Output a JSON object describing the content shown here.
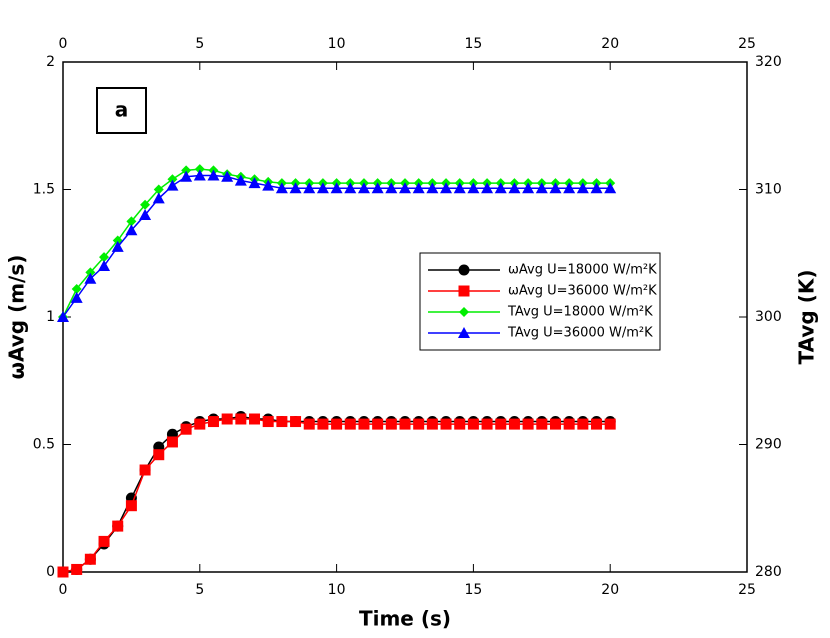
{
  "chart_data": {
    "type": "line",
    "annotation": "a",
    "x_label": "Time (s)",
    "y_label": "ωAvg (m/s)",
    "y2_label": "TAvg (K)",
    "x": [
      0,
      0.5,
      1,
      1.5,
      2,
      2.5,
      3,
      3.5,
      4,
      4.5,
      5,
      5.5,
      6,
      6.5,
      7,
      7.5,
      8,
      8.5,
      9,
      9.5,
      10,
      10.5,
      11,
      11.5,
      12,
      12.5,
      13,
      13.5,
      14,
      14.5,
      15,
      15.5,
      16,
      16.5,
      17,
      17.5,
      18,
      18.5,
      19,
      19.5,
      20
    ],
    "xlim": [
      0,
      25
    ],
    "xticks": [
      0,
      5,
      10,
      15,
      20,
      25
    ],
    "ylim": [
      0,
      2
    ],
    "yticks": [
      0,
      0.5,
      1,
      1.5,
      2
    ],
    "y2lim": [
      280,
      320
    ],
    "y2ticks": [
      280,
      290,
      300,
      310,
      320
    ],
    "series": [
      {
        "name": "ωAvg U=18000 W/m²K",
        "color": "#000000",
        "marker": "circle",
        "values": [
          0,
          0.01,
          0.05,
          0.11,
          0.18,
          0.29,
          0.4,
          0.49,
          0.54,
          0.57,
          0.59,
          0.6,
          0.6,
          0.61,
          0.6,
          0.6,
          0.59,
          0.59,
          0.59,
          0.59,
          0.59,
          0.59,
          0.59,
          0.59,
          0.59,
          0.59,
          0.59,
          0.59,
          0.59,
          0.59,
          0.59,
          0.59,
          0.59,
          0.59,
          0.59,
          0.59,
          0.59,
          0.59,
          0.59,
          0.59,
          0.59
        ]
      },
      {
        "name": "ωAvg U=36000 W/m²K",
        "color": "#ff0000",
        "marker": "square",
        "values": [
          0,
          0.01,
          0.05,
          0.12,
          0.18,
          0.26,
          0.4,
          0.46,
          0.51,
          0.56,
          0.58,
          0.59,
          0.6,
          0.6,
          0.6,
          0.59,
          0.59,
          0.59,
          0.58,
          0.58,
          0.58,
          0.58,
          0.58,
          0.58,
          0.58,
          0.58,
          0.58,
          0.58,
          0.58,
          0.58,
          0.58,
          0.58,
          0.58,
          0.58,
          0.58,
          0.58,
          0.58,
          0.58,
          0.58,
          0.58,
          0.58
        ]
      },
      {
        "name": "TAvg U=18000 W/m²K",
        "color": "#00ee00",
        "marker": "diamond",
        "axis": "y2",
        "values": [
          300,
          302.2,
          303.5,
          304.7,
          306,
          307.5,
          308.8,
          310,
          310.8,
          311.5,
          311.6,
          311.5,
          311.2,
          311,
          310.8,
          310.6,
          310.5,
          310.5,
          310.5,
          310.5,
          310.5,
          310.5,
          310.5,
          310.5,
          310.5,
          310.5,
          310.5,
          310.5,
          310.5,
          310.5,
          310.5,
          310.5,
          310.5,
          310.5,
          310.5,
          310.5,
          310.5,
          310.5,
          310.5,
          310.5,
          310.5
        ]
      },
      {
        "name": "TAvg U=36000 W/m²K",
        "color": "#0000ff",
        "marker": "triangle",
        "axis": "y2",
        "values": [
          300,
          301.5,
          303,
          304,
          305.5,
          306.8,
          308,
          309.3,
          310.3,
          311,
          311.1,
          311.1,
          311,
          310.7,
          310.5,
          310.3,
          310.1,
          310.1,
          310.1,
          310.1,
          310.1,
          310.1,
          310.1,
          310.1,
          310.1,
          310.1,
          310.1,
          310.1,
          310.1,
          310.1,
          310.1,
          310.1,
          310.1,
          310.1,
          310.1,
          310.1,
          310.1,
          310.1,
          310.1,
          310.1,
          310.1
        ]
      }
    ]
  }
}
